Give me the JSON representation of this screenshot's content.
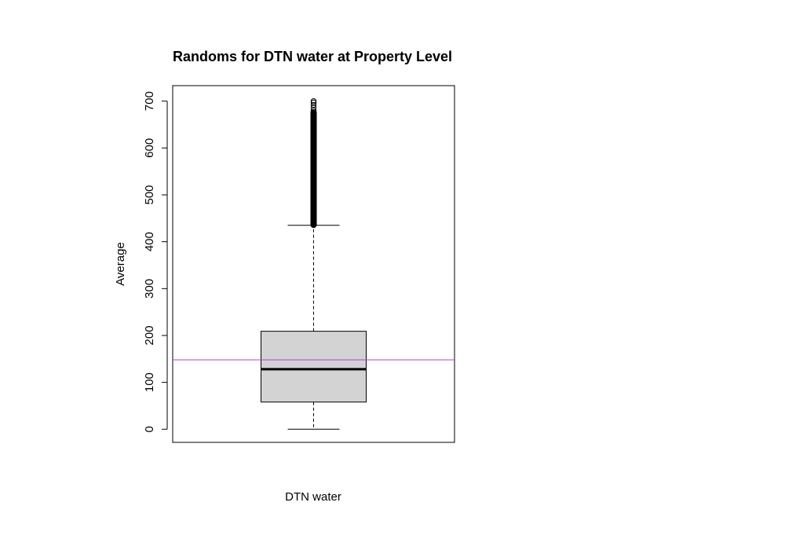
{
  "chart_data": {
    "type": "box",
    "title": "Randoms for DTN water at Property Level",
    "xlabel": "DTN water",
    "ylabel": "Average",
    "ylim": [
      -28,
      733
    ],
    "yticks": [
      0,
      100,
      200,
      300,
      400,
      500,
      600,
      700
    ],
    "grid": false,
    "box": {
      "category": "DTN water",
      "min": 0,
      "q1": 58,
      "median": 128,
      "q3": 209,
      "whisker_high": 435,
      "outliers_range": [
        435,
        700
      ],
      "outliers_sample": [
        437,
        445,
        455,
        470,
        485,
        500,
        515,
        530,
        545,
        560,
        575,
        590,
        605,
        620,
        635,
        650,
        662,
        672,
        680,
        686,
        692,
        697,
        700
      ]
    },
    "reference_line": {
      "y": 148,
      "color": "#b040c8"
    },
    "colors": {
      "box_fill": "#d3d3d3",
      "stroke": "#000000"
    }
  }
}
